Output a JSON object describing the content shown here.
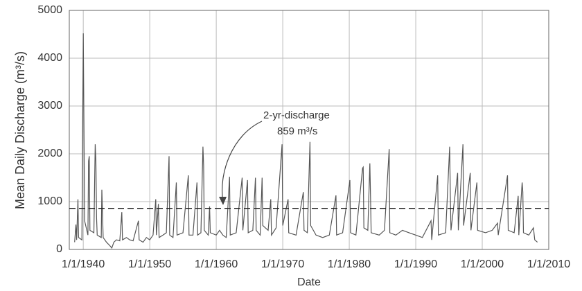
{
  "chart_data": {
    "type": "line",
    "x_label": "Date",
    "y_label": "Mean Daily Discharge (m³/s)",
    "color": "#555555",
    "grid": true,
    "xlim": [
      1937.9,
      2010
    ],
    "xticks": [
      {
        "value": 1940,
        "label": "1/1/1940"
      },
      {
        "value": 1950,
        "label": "1/1/1950"
      },
      {
        "value": 1960,
        "label": "1/1/1960"
      },
      {
        "value": 1970,
        "label": "1/1/1970"
      },
      {
        "value": 1980,
        "label": "1/1/1980"
      },
      {
        "value": 1990,
        "label": "1/1/1990"
      },
      {
        "value": 2000,
        "label": "1/1/2000"
      },
      {
        "value": 2010,
        "label": "1/1/2010"
      }
    ],
    "ylim": [
      0,
      5000
    ],
    "yticks": [
      0,
      1000,
      2000,
      3000,
      4000,
      5000
    ],
    "reference_line": {
      "value": 859,
      "label": "2-yr-discharge",
      "value_label": "859 m³/s"
    },
    "x": [
      1938.7,
      1938.9,
      1939.0,
      1939.2,
      1939.3,
      1939.8,
      1940.0,
      1940.1,
      1940.2,
      1940.7,
      1940.8,
      1940.9,
      1941.0,
      1941.6,
      1941.8,
      1941.9,
      1942.0,
      1942.1,
      1942.7,
      1942.8,
      1943.0,
      1943.5,
      1944.0,
      1944.3,
      1944.6,
      1945.0,
      1945.5,
      1945.8,
      1945.9,
      1946.5,
      1947.0,
      1947.5,
      1948.3,
      1948.4,
      1949.0,
      1949.5,
      1950.0,
      1950.5,
      1950.9,
      1951.0,
      1951.3,
      1951.4,
      1952.0,
      1952.5,
      1952.9,
      1953.0,
      1953.5,
      1954.0,
      1954.1,
      1955.0,
      1955.8,
      1955.9,
      1956.5,
      1957.1,
      1957.2,
      1957.7,
      1958.0,
      1958.1,
      1958.2,
      1958.8,
      1959.0,
      1959.1,
      1960.0,
      1960.5,
      1961.0,
      1961.5,
      1962.0,
      1962.1,
      1963.0,
      1963.9,
      1964.0,
      1964.7,
      1964.8,
      1965.5,
      1965.9,
      1966.0,
      1966.6,
      1966.9,
      1967.0,
      1967.8,
      1968.2,
      1968.3,
      1969.0,
      1969.9,
      1970.0,
      1970.8,
      1970.9,
      1972.0,
      1973.1,
      1973.2,
      1973.7,
      1974.1,
      1974.2,
      1975.0,
      1976.0,
      1977.0,
      1978.0,
      1978.1,
      1979.0,
      1980.1,
      1980.2,
      1981.0,
      1982.0,
      1982.1,
      1982.2,
      1982.8,
      1983.1,
      1983.2,
      1983.3,
      1984.5,
      1985.3,
      1986.0,
      1986.1,
      1987.0,
      1988.0,
      1989.0,
      1990.0,
      1991.0,
      1992.3,
      1992.4,
      1993.3,
      1993.4,
      1994.5,
      1995.1,
      1995.2,
      1995.3,
      1996.3,
      1996.4,
      1997.1,
      1997.2,
      1998.2,
      1998.3,
      1999.2,
      1999.3,
      2000.5,
      2001.5,
      2002.3,
      2002.4,
      2003.8,
      2003.9,
      2004.8,
      2005.4,
      2005.5,
      2006.0,
      2006.1,
      2006.2,
      2007.0,
      2007.7,
      2007.9,
      2008.3
    ],
    "values": [
      150,
      520,
      200,
      1050,
      250,
      200,
      4520,
      2700,
      600,
      300,
      1850,
      1950,
      400,
      350,
      2200,
      1850,
      650,
      300,
      250,
      1250,
      250,
      150,
      80,
      30,
      150,
      200,
      180,
      780,
      200,
      250,
      200,
      180,
      600,
      200,
      150,
      250,
      200,
      300,
      1050,
      300,
      950,
      250,
      300,
      350,
      1950,
      300,
      250,
      1400,
      300,
      350,
      1550,
      300,
      300,
      1400,
      300,
      350,
      2150,
      1750,
      400,
      300,
      900,
      350,
      300,
      400,
      300,
      250,
      1520,
      300,
      350,
      1500,
      400,
      1450,
      350,
      400,
      1500,
      400,
      300,
      1500,
      500,
      400,
      1050,
      300,
      450,
      2200,
      500,
      1050,
      350,
      300,
      1200,
      400,
      350,
      2250,
      500,
      300,
      250,
      300,
      1130,
      300,
      350,
      1450,
      350,
      300,
      1700,
      1720,
      450,
      400,
      1800,
      1100,
      350,
      300,
      400,
      2100,
      350,
      300,
      400,
      350,
      300,
      250,
      600,
      200,
      1550,
      300,
      350,
      2150,
      1100,
      400,
      1600,
      400,
      2200,
      500,
      1600,
      400,
      1400,
      400,
      350,
      400,
      550,
      300,
      1550,
      400,
      350,
      1120,
      300,
      1400,
      1200,
      350,
      300,
      450,
      200,
      150
    ]
  }
}
